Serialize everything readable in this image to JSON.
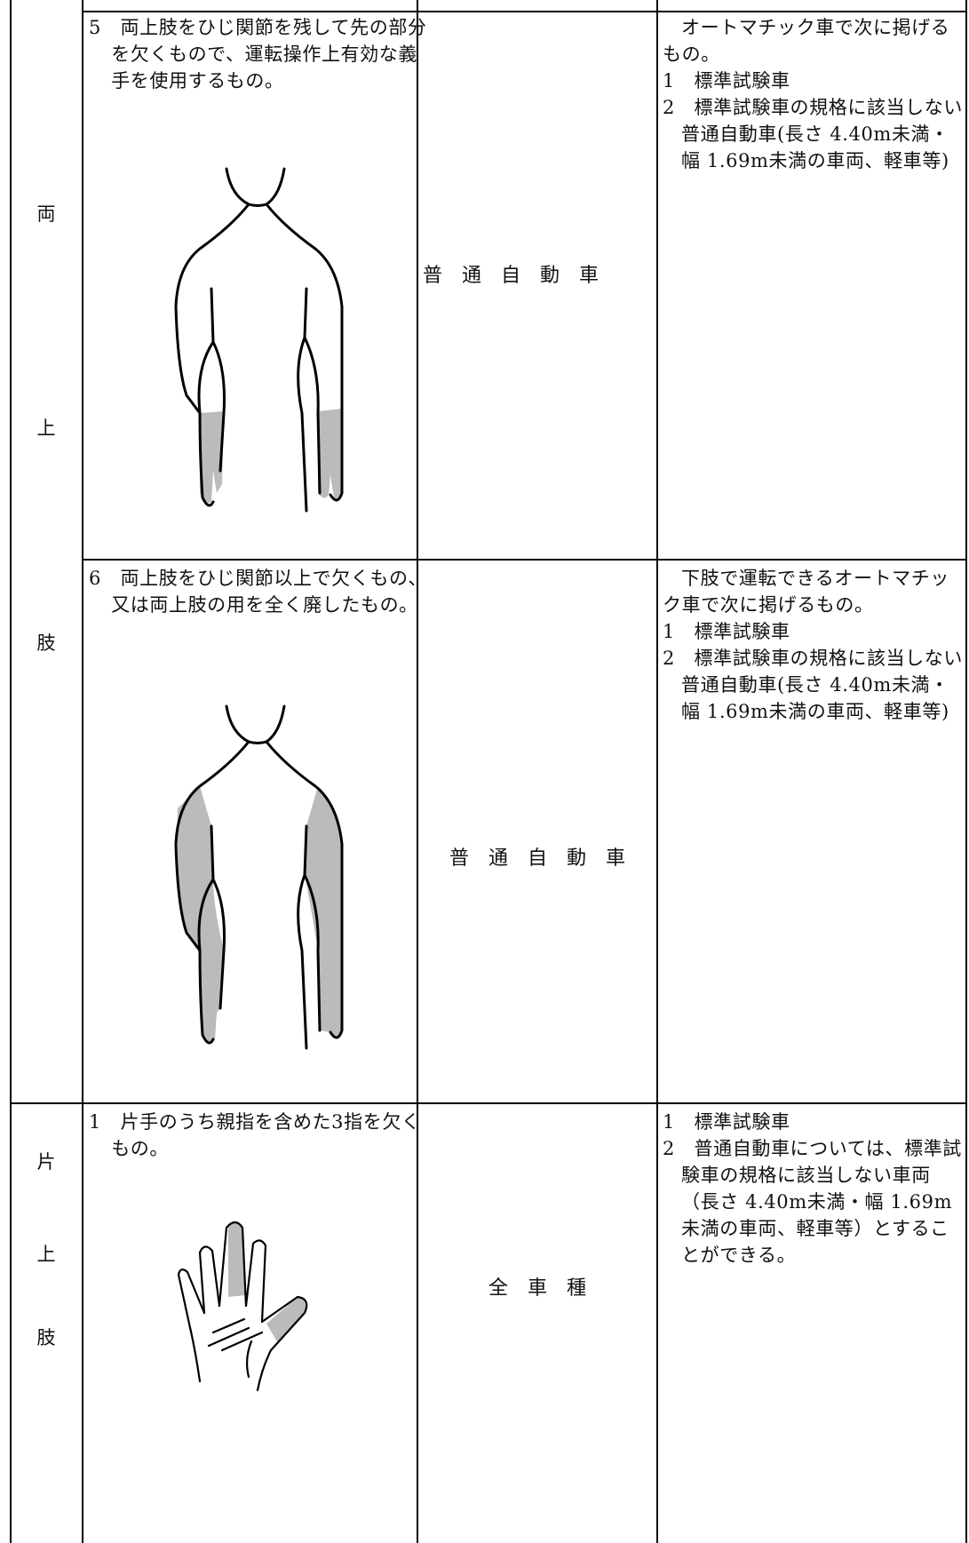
{
  "table": {
    "groups": [
      {
        "label": [
          "両",
          "上",
          "肢"
        ]
      },
      {
        "label": [
          "片",
          "上",
          "肢"
        ]
      }
    ],
    "rows": [
      {
        "condition": "5　両上肢をひじ関節を残して先の部分を欠くもので、運転操作上有効な義手を使用するもの。",
        "vehicle": "普　通　自　動　車",
        "requirements": {
          "intro": "オートマチック車で次に掲げるもの。",
          "items": [
            "1　標準試験車",
            "2　標準試験車の規格に該当しない普通自動車(長さ 4.40m未満・幅 1.69m未満の車両、軽車等)"
          ]
        }
      },
      {
        "condition": "6　両上肢をひじ関節以上で欠くもの、又は両上肢の用を全く廃したもの。",
        "vehicle": "普　通　自　動　車",
        "requirements": {
          "intro": "下肢で運転できるオートマチック車で次に掲げるもの。",
          "items": [
            "1　標準試験車",
            "2　標準試験車の規格に該当しない普通自動車(長さ 4.40m未満・幅 1.69m未満の車両、軽車等)"
          ]
        }
      },
      {
        "condition": "1　片手のうち親指を含めた3指を欠くもの。",
        "vehicle": "全　車　種",
        "requirements": {
          "items": [
            "1　標準試験車",
            "2　普通自動車については、標準試験車の規格に該当しない車両（長さ 4.40m未満・幅 1.69m未満の車両、軽車等）とすることができる。"
          ]
        }
      }
    ]
  }
}
